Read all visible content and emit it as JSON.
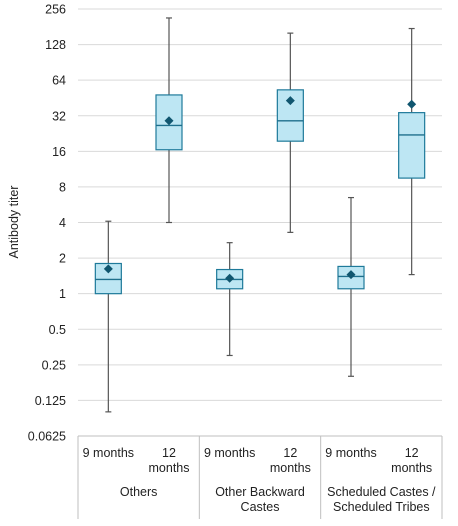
{
  "chart_data": {
    "type": "box",
    "ylabel": "Antibody titer",
    "y_scale": "log2",
    "ylim": [
      0.0625,
      256
    ],
    "y_ticks": [
      "0.0625",
      "0.125",
      "0.25",
      "0.5",
      "1",
      "2",
      "4",
      "8",
      "16",
      "32",
      "64",
      "128",
      "256"
    ],
    "grid": true,
    "groups": [
      {
        "name": "Others",
        "boxes": [
          {
            "label_line1": "9 months",
            "label_line2": "",
            "min": 0.1,
            "q1": 1.0,
            "median": 1.32,
            "q3": 1.8,
            "max": 4.1,
            "mean": 1.62
          },
          {
            "label_line1": "12",
            "label_line2": "months",
            "min": 4.0,
            "q1": 16.5,
            "median": 26.5,
            "q3": 48.0,
            "max": 215.0,
            "mean": 29.0
          }
        ]
      },
      {
        "name_line1": "Other Backward",
        "name_line2": "Castes",
        "boxes": [
          {
            "label_line1": "9 months",
            "label_line2": "",
            "min": 0.3,
            "q1": 1.1,
            "median": 1.32,
            "q3": 1.6,
            "max": 2.7,
            "mean": 1.35
          },
          {
            "label_line1": "12",
            "label_line2": "months",
            "min": 3.3,
            "q1": 19.5,
            "median": 29.0,
            "q3": 53.0,
            "max": 160.0,
            "mean": 43.0
          }
        ]
      },
      {
        "name_line1": "Scheduled Castes /",
        "name_line2": "Scheduled Tribes",
        "boxes": [
          {
            "label_line1": "9 months",
            "label_line2": "",
            "min": 0.2,
            "q1": 1.1,
            "median": 1.4,
            "q3": 1.7,
            "max": 6.5,
            "mean": 1.45
          },
          {
            "label_line1": "12",
            "label_line2": "months",
            "min": 1.45,
            "q1": 9.5,
            "median": 22.0,
            "q3": 34.0,
            "max": 175.0,
            "mean": 40.0
          }
        ]
      }
    ],
    "colors": {
      "box_fill": "#bde6f3",
      "box_stroke": "#1e7a9a",
      "median": "#1e6f8c",
      "mean_marker": "#10566f",
      "whisker": "#555555",
      "grid": "#d9d9d9",
      "axis": "#bfbfbf"
    }
  }
}
